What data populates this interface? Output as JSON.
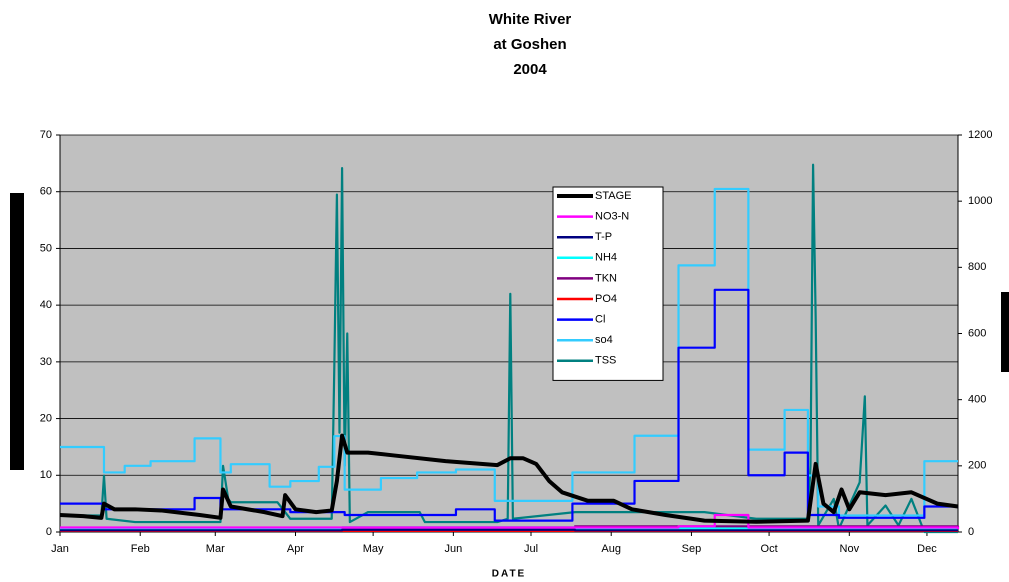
{
  "chart_data": {
    "type": "line",
    "title": [
      "White River",
      "at Goshen",
      "2004"
    ],
    "xlabel": "DATE",
    "xlim": [
      1,
      348
    ],
    "xticks": [
      {
        "value": 1,
        "label": "Jan"
      },
      {
        "value": 32,
        "label": "Feb"
      },
      {
        "value": 61,
        "label": "Mar"
      },
      {
        "value": 92,
        "label": "Apr"
      },
      {
        "value": 122,
        "label": "May"
      },
      {
        "value": 153,
        "label": "Jun"
      },
      {
        "value": 183,
        "label": "Jul"
      },
      {
        "value": 214,
        "label": "Aug"
      },
      {
        "value": 245,
        "label": "Sep"
      },
      {
        "value": 275,
        "label": "Oct"
      },
      {
        "value": 306,
        "label": "Nov"
      },
      {
        "value": 336,
        "label": "Dec"
      }
    ],
    "ylim": [
      0,
      70
    ],
    "yticks": [
      0,
      10,
      20,
      30,
      40,
      50,
      60,
      70
    ],
    "y2lim": [
      0,
      1200
    ],
    "y2ticks": [
      0,
      200,
      400,
      600,
      800,
      1000,
      1200
    ],
    "grid": true,
    "legend": "top-center",
    "series": [
      {
        "name": "STAGE",
        "color": "#000000",
        "x": [
          1,
          10,
          17,
          18,
          22,
          30,
          40,
          55,
          63,
          64,
          67,
          80,
          87,
          88,
          92,
          100,
          106,
          108,
          110,
          112,
          120,
          130,
          150,
          170,
          175,
          180,
          185,
          190,
          195,
          205,
          215,
          222,
          235,
          250,
          270,
          290,
          293,
          296,
          300,
          303,
          306,
          310,
          320,
          330,
          340,
          348
        ],
        "values": [
          3,
          2.8,
          2.5,
          5,
          4,
          4,
          3.8,
          3,
          2.5,
          7.5,
          4.5,
          3.5,
          2.8,
          6.5,
          4,
          3.5,
          3.8,
          9,
          17,
          14,
          14,
          13.5,
          12.5,
          11.8,
          13,
          13,
          12,
          9,
          7,
          5.5,
          5.5,
          4,
          3,
          2,
          1.8,
          2,
          12,
          5,
          3.5,
          7.5,
          4,
          7,
          6.5,
          7,
          5,
          4.5
        ]
      },
      {
        "name": "NO3-N",
        "color": "#ff00ff",
        "steps": true,
        "x": [
          1,
          240,
          254,
          267,
          348
        ],
        "values": [
          0.8,
          1,
          3,
          0.8,
          0.5
        ]
      },
      {
        "name": "T-P",
        "color": "#000080",
        "steps": true,
        "x": [
          1,
          110,
          200,
          300,
          348
        ],
        "values": [
          0.3,
          0.4,
          0.3,
          0.3,
          0.3
        ]
      },
      {
        "name": "NH4",
        "color": "#00ffff",
        "steps": true,
        "x": [
          1,
          63,
          110,
          200,
          290,
          348
        ],
        "values": [
          0.5,
          0.6,
          0.8,
          0.6,
          0.5,
          0.5
        ]
      },
      {
        "name": "TKN",
        "color": "#800080",
        "steps": true,
        "x": [
          1,
          110,
          200,
          300,
          348
        ],
        "values": [
          0.5,
          0.8,
          1,
          1,
          0.8
        ]
      },
      {
        "name": "PO4",
        "color": "#ff0000",
        "steps": true,
        "x": [
          1,
          348
        ],
        "values": [
          0.2,
          0.2
        ]
      },
      {
        "name": "Cl",
        "color": "#0000ff",
        "steps": true,
        "x": [
          1,
          18,
          53,
          63,
          90,
          111,
          154,
          169,
          199,
          223,
          240,
          254,
          267,
          281,
          290,
          302,
          335,
          348
        ],
        "values": [
          5,
          4,
          6,
          4,
          3.5,
          3,
          4,
          2,
          5,
          9,
          32.5,
          42.7,
          10,
          14,
          3,
          2.5,
          4.5,
          4.5
        ]
      },
      {
        "name": "so4",
        "color": "#33ccff",
        "axis": "y2",
        "steps": true,
        "x": [
          1,
          18,
          26,
          36,
          53,
          63,
          67,
          82,
          90,
          101,
          107,
          111,
          125,
          139,
          154,
          169,
          199,
          223,
          240,
          254,
          267,
          281,
          290,
          294,
          302,
          335,
          348
        ],
        "values": [
          257,
          180,
          200,
          214,
          283,
          180,
          205,
          137,
          154,
          197,
          290,
          128,
          163,
          180,
          189,
          94,
          180,
          291,
          806,
          1037,
          249,
          369,
          171,
          77,
          50,
          214,
          214
        ]
      },
      {
        "name": "TSS",
        "color": "#008080",
        "axis": "y2",
        "x": [
          1,
          17,
          18,
          19,
          30,
          63,
          64,
          66,
          67,
          85,
          88,
          90,
          100,
          106,
          107,
          108,
          109,
          110,
          111,
          112,
          113,
          120,
          140,
          142,
          170,
          174,
          175,
          176,
          200,
          250,
          270,
          290,
          291,
          292,
          293,
          294,
          300,
          302,
          310,
          312,
          313,
          320,
          325,
          330,
          335,
          348
        ],
        "values": [
          50,
          50,
          170,
          40,
          30,
          30,
          200,
          100,
          90,
          90,
          60,
          40,
          40,
          40,
          500,
          1020,
          300,
          1100,
          200,
          600,
          30,
          60,
          60,
          30,
          30,
          40,
          720,
          40,
          60,
          60,
          40,
          40,
          200,
          1110,
          650,
          20,
          100,
          10,
          150,
          410,
          20,
          80,
          20,
          100,
          0,
          0
        ]
      }
    ]
  }
}
